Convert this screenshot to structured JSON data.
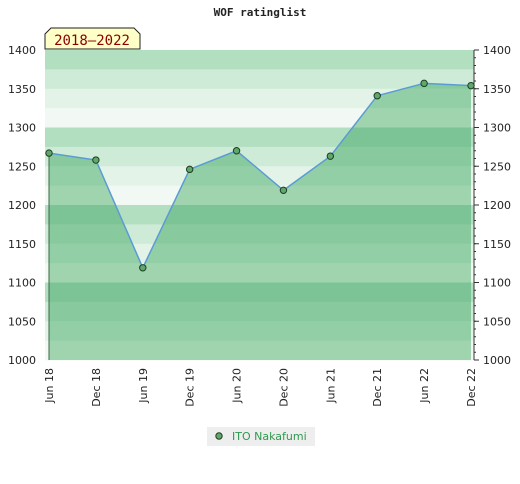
{
  "chart_data": {
    "type": "line",
    "title": "WOF ratinglist",
    "period_label": "2018–2022",
    "categories": [
      "Jun 18",
      "Dec 18",
      "Jun 19",
      "Dec 19",
      "Jun 20",
      "Dec 20",
      "Jun 21",
      "Dec 21",
      "Jun 22",
      "Dec 22"
    ],
    "series": [
      {
        "name": "ITO Nakafumi",
        "color": "#5b9bd5",
        "marker_color": "#5fa86a",
        "values": [
          1267,
          1258,
          1119,
          1246,
          1270,
          1219,
          1263,
          1341,
          1357,
          1354
        ]
      }
    ],
    "ylim": [
      1000,
      1400
    ],
    "yticks": [
      1000,
      1050,
      1100,
      1150,
      1200,
      1250,
      1300,
      1350,
      1400
    ]
  }
}
